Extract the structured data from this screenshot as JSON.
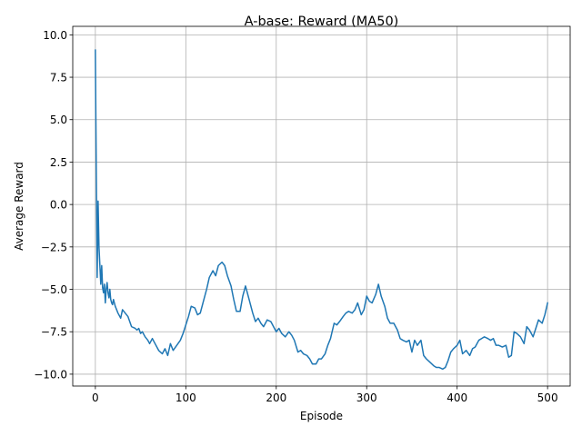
{
  "chart_data": {
    "type": "line",
    "title": "A-base: Reward (MA50)",
    "xlabel": "Episode",
    "ylabel": "Average Reward",
    "xlim": [
      -25,
      525
    ],
    "ylim": [
      -10.7,
      10.5
    ],
    "xticks": [
      0,
      100,
      200,
      300,
      400,
      500
    ],
    "xtick_labels": [
      "0",
      "100",
      "200",
      "300",
      "400",
      "500"
    ],
    "yticks": [
      -10.0,
      -7.5,
      -5.0,
      -2.5,
      0.0,
      2.5,
      5.0,
      7.5,
      10.0
    ],
    "ytick_labels": [
      "−10.0",
      "−7.5",
      "−5.0",
      "−2.5",
      "0.0",
      "2.5",
      "5.0",
      "7.5",
      "10.0"
    ],
    "grid": true,
    "series": [
      {
        "color": "#1f77b4",
        "x": [
          0,
          1,
          2,
          3,
          4,
          5,
          6,
          7,
          8,
          9,
          10,
          11,
          12,
          13,
          14,
          15,
          16,
          17,
          18,
          19,
          20,
          22,
          25,
          28,
          30,
          33,
          36,
          40,
          44,
          46,
          48,
          50,
          52,
          55,
          58,
          60,
          63,
          66,
          70,
          74,
          77,
          80,
          83,
          86,
          90,
          94,
          97,
          100,
          103,
          106,
          110,
          113,
          116,
          120,
          123,
          126,
          130,
          133,
          136,
          140,
          143,
          146,
          150,
          153,
          156,
          160,
          163,
          166,
          170,
          174,
          177,
          180,
          183,
          186,
          190,
          194,
          197,
          200,
          203,
          206,
          210,
          214,
          217,
          220,
          224,
          227,
          230,
          234,
          237,
          240,
          244,
          247,
          250,
          254,
          257,
          260,
          264,
          267,
          270,
          274,
          277,
          280,
          284,
          287,
          290,
          294,
          297,
          300,
          303,
          306,
          310,
          313,
          316,
          320,
          323,
          326,
          330,
          334,
          337,
          340,
          344,
          347,
          350,
          353,
          356,
          360,
          363,
          366,
          370,
          374,
          377,
          380,
          384,
          387,
          390,
          393,
          396,
          400,
          403,
          406,
          410,
          414,
          417,
          420,
          424,
          427,
          430,
          434,
          437,
          440,
          443,
          446,
          450,
          454,
          457,
          460,
          463,
          466,
          470,
          474,
          477,
          480,
          484,
          487,
          490,
          494,
          497,
          500
        ],
        "y": [
          9.1,
          2.0,
          -4.3,
          0.2,
          -2.5,
          -3.6,
          -4.7,
          -3.6,
          -4.9,
          -5.2,
          -4.7,
          -5.8,
          -5.0,
          -4.6,
          -5.2,
          -5.5,
          -5.0,
          -5.6,
          -5.8,
          -5.9,
          -5.6,
          -6.0,
          -6.4,
          -6.7,
          -6.2,
          -6.4,
          -6.6,
          -7.2,
          -7.3,
          -7.4,
          -7.3,
          -7.6,
          -7.5,
          -7.8,
          -8.0,
          -8.2,
          -7.9,
          -8.2,
          -8.6,
          -8.8,
          -8.5,
          -8.9,
          -8.2,
          -8.6,
          -8.3,
          -8.0,
          -7.6,
          -7.1,
          -6.6,
          -6.0,
          -6.1,
          -6.5,
          -6.4,
          -5.6,
          -5.0,
          -4.3,
          -3.9,
          -4.2,
          -3.6,
          -3.4,
          -3.6,
          -4.2,
          -4.8,
          -5.6,
          -6.3,
          -6.3,
          -5.4,
          -4.8,
          -5.6,
          -6.4,
          -6.9,
          -6.7,
          -7.0,
          -7.2,
          -6.8,
          -6.9,
          -7.2,
          -7.5,
          -7.3,
          -7.6,
          -7.8,
          -7.5,
          -7.7,
          -8.0,
          -8.7,
          -8.6,
          -8.8,
          -8.9,
          -9.1,
          -9.4,
          -9.4,
          -9.1,
          -9.1,
          -8.8,
          -8.3,
          -7.9,
          -7.0,
          -7.1,
          -6.9,
          -6.6,
          -6.4,
          -6.3,
          -6.4,
          -6.2,
          -5.8,
          -6.5,
          -6.2,
          -5.4,
          -5.7,
          -5.8,
          -5.3,
          -4.7,
          -5.4,
          -6.0,
          -6.7,
          -7.0,
          -7.0,
          -7.4,
          -7.9,
          -8.0,
          -8.1,
          -8.0,
          -8.7,
          -8.0,
          -8.3,
          -8.0,
          -8.9,
          -9.1,
          -9.3,
          -9.5,
          -9.6,
          -9.6,
          -9.7,
          -9.6,
          -9.2,
          -8.7,
          -8.5,
          -8.3,
          -8.0,
          -8.8,
          -8.6,
          -8.9,
          -8.5,
          -8.4,
          -8.0,
          -7.9,
          -7.8,
          -7.9,
          -8.0,
          -7.9,
          -8.3,
          -8.3,
          -8.4,
          -8.3,
          -9.0,
          -8.9,
          -7.5,
          -7.6,
          -7.8,
          -8.2,
          -7.2,
          -7.4,
          -7.8,
          -7.3,
          -6.8,
          -7.0,
          -6.5,
          -5.8
        ]
      }
    ]
  }
}
